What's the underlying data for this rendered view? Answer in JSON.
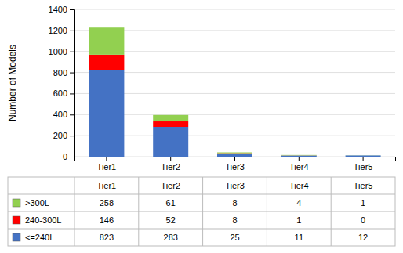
{
  "chart_data": {
    "type": "bar",
    "stacked": true,
    "categories": [
      "Tier1",
      "Tier2",
      "Tier3",
      "Tier4",
      "Tier5"
    ],
    "series": [
      {
        "name": ">300L",
        "color": "#92d050",
        "values": [
          258,
          61,
          8,
          4,
          1
        ]
      },
      {
        "name": "240-300L",
        "color": "#ff0000",
        "values": [
          146,
          52,
          8,
          1,
          0
        ]
      },
      {
        "name": "<=240L",
        "color": "#4472c4",
        "values": [
          823,
          283,
          25,
          11,
          12
        ]
      }
    ],
    "ylabel": "Number of Models",
    "ylim": [
      0,
      1400
    ],
    "yticks": [
      0,
      200,
      400,
      600,
      800,
      1000,
      1200,
      1400
    ],
    "grid": true
  }
}
